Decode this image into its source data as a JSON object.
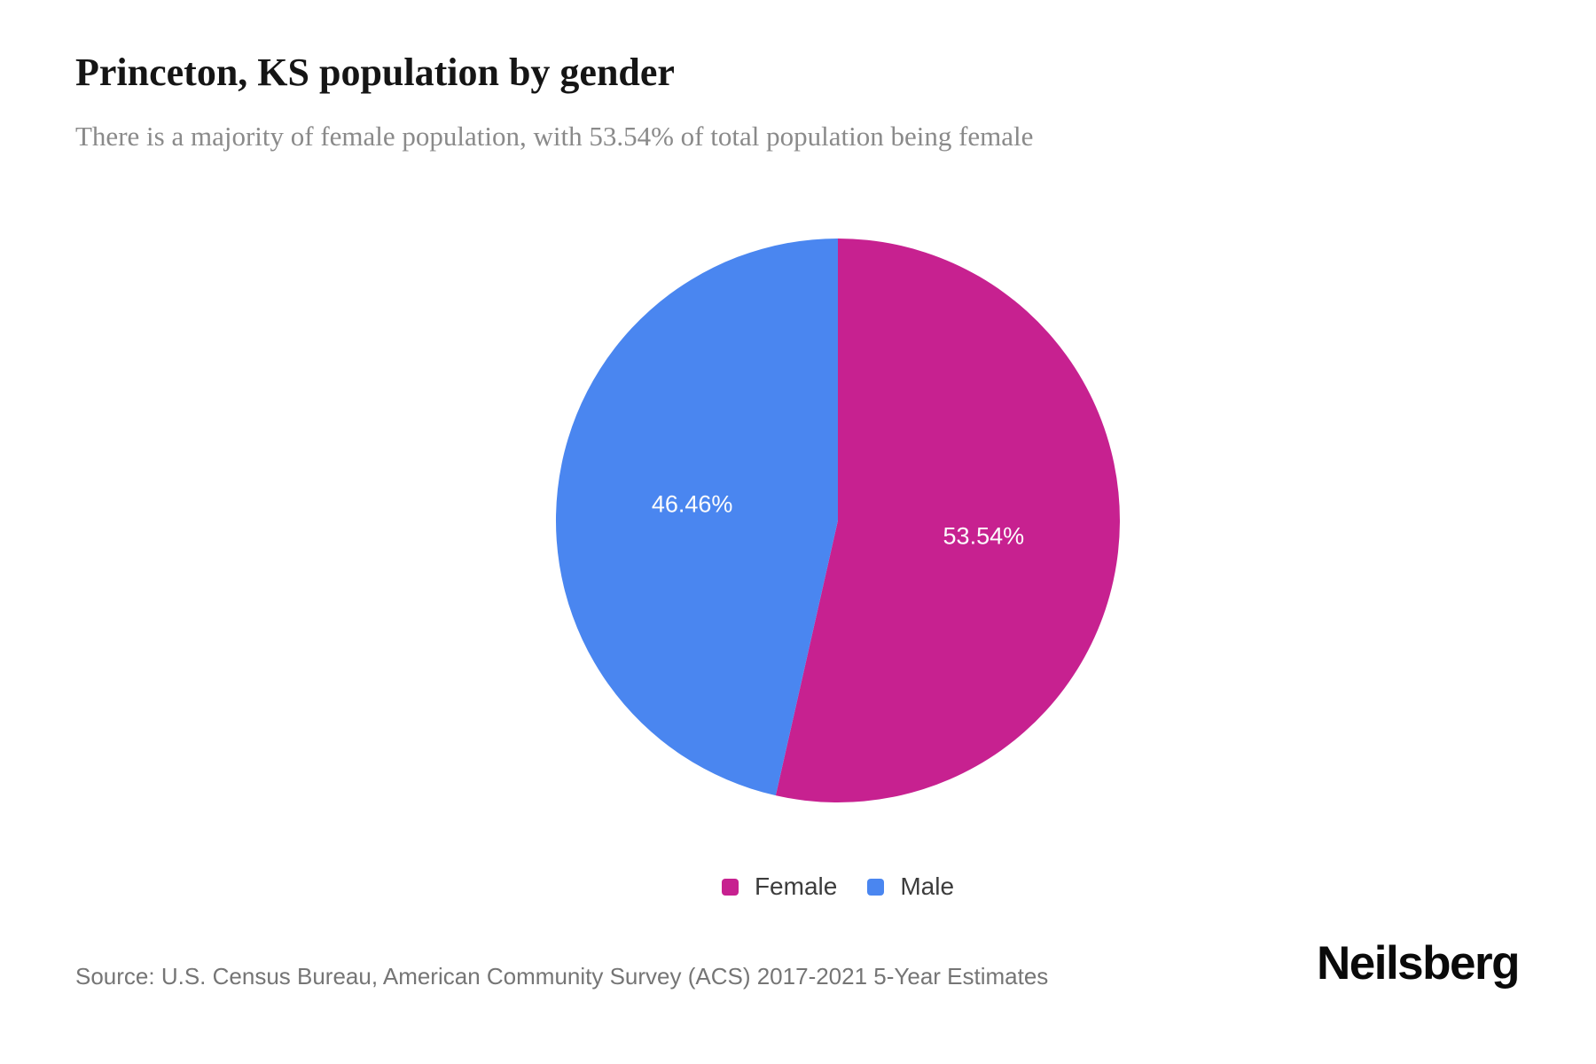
{
  "header": {
    "title": "Princeton, KS population by gender",
    "subtitle": "There is a majority of female population, with 53.54% of total population being female"
  },
  "chart_data": {
    "type": "pie",
    "title": "Princeton, KS population by gender",
    "subtitle": "There is a majority of female population, with 53.54% of total population being female",
    "categories": [
      "Female",
      "Male"
    ],
    "series": [
      {
        "name": "Female",
        "value": 53.54,
        "label": "53.54%",
        "color": "#c72190"
      },
      {
        "name": "Male",
        "value": 46.46,
        "label": "46.46%",
        "color": "#4a86f0"
      }
    ],
    "start_angle_deg": 0,
    "direction": "clockwise",
    "data_label_color": "#fdfdfd",
    "legend_position": "bottom",
    "units": "percent of total population"
  },
  "legend": {
    "items": [
      {
        "label": "Female",
        "color": "#c72190"
      },
      {
        "label": "Male",
        "color": "#4a86f0"
      }
    ]
  },
  "footer": {
    "source": "Source: U.S. Census Bureau, American Community Survey (ACS) 2017-2021 5-Year Estimates",
    "brand": "Neilsberg"
  },
  "colors": {
    "background": "#ffffff",
    "title": "#151515",
    "subtitle": "#8a8a8a",
    "legend_text": "#3c3c3c",
    "source_text": "#757575"
  }
}
